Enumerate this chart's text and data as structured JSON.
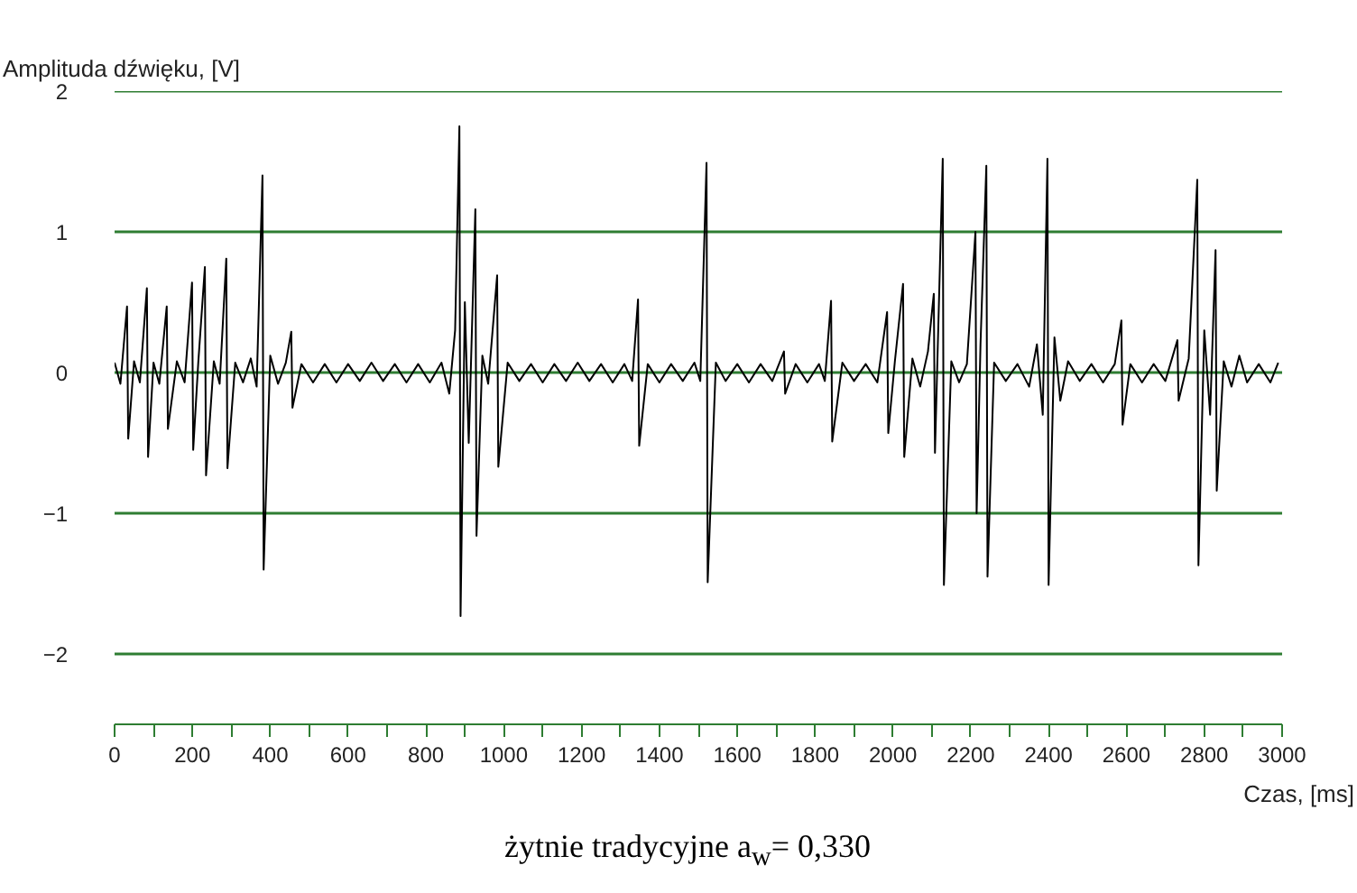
{
  "chart_data": {
    "type": "line",
    "ylabel": "Amplituda dźwięku, [V]",
    "xlabel": "Czas, [ms]",
    "annotations": [
      "żytnie tradycyjne a$_{w}$= 0,330"
    ],
    "xlim": [
      0,
      3000
    ],
    "ylim": [
      -2.5,
      2
    ],
    "xticks": [
      0,
      {
        "value": 100,
        "label": null
      },
      200,
      {
        "value": 300,
        "label": null
      },
      400,
      {
        "value": 500,
        "label": null
      },
      600,
      {
        "value": 700,
        "label": null
      },
      800,
      {
        "value": 900,
        "label": null
      },
      1000,
      {
        "value": 1100,
        "label": null
      },
      1200,
      {
        "value": 1300,
        "label": null
      },
      1400,
      {
        "value": 1500,
        "label": null
      },
      1600,
      {
        "value": 1700,
        "label": null
      },
      1800,
      {
        "value": 1900,
        "label": null
      },
      2000,
      {
        "value": 2100,
        "label": null
      },
      2200,
      {
        "value": 2300,
        "label": null
      },
      2400,
      {
        "value": 2500,
        "label": null
      },
      2600,
      {
        "value": 2700,
        "label": null
      },
      2800,
      {
        "value": 2900,
        "label": null
      },
      3000
    ],
    "yticks": [
      -2,
      -1,
      0,
      1,
      2
    ],
    "grid": "y",
    "marker": "none",
    "line_style": "solid",
    "series": [
      {
        "color": "#000000",
        "x": [
          0,
          15,
          32,
          35,
          50,
          65,
          83,
          86,
          100,
          115,
          134,
          137,
          160,
          180,
          199,
          202,
          215,
          232,
          235,
          255,
          270,
          287,
          290,
          310,
          330,
          350,
          365,
          380,
          383,
          400,
          420,
          440,
          454,
          457,
          480,
          510,
          540,
          570,
          600,
          630,
          660,
          690,
          720,
          750,
          780,
          810,
          840,
          860,
          875,
          886,
          889,
          900,
          910,
          927,
          930,
          945,
          960,
          983,
          986,
          1010,
          1040,
          1070,
          1100,
          1130,
          1160,
          1190,
          1220,
          1250,
          1280,
          1310,
          1330,
          1345,
          1348,
          1370,
          1400,
          1430,
          1460,
          1490,
          1505,
          1521,
          1524,
          1545,
          1570,
          1600,
          1630,
          1660,
          1690,
          1720,
          1723,
          1750,
          1780,
          1810,
          1825,
          1841,
          1844,
          1870,
          1900,
          1930,
          1960,
          1985,
          1988,
          2005,
          2026,
          2029,
          2050,
          2070,
          2090,
          2105,
          2108,
          2128,
          2131,
          2150,
          2170,
          2190,
          2212,
          2215,
          2225,
          2240,
          2243,
          2260,
          2290,
          2320,
          2350,
          2370,
          2385,
          2397,
          2400,
          2415,
          2430,
          2450,
          2480,
          2510,
          2540,
          2570,
          2587,
          2590,
          2610,
          2640,
          2670,
          2700,
          2731,
          2734,
          2760,
          2782,
          2785,
          2800,
          2815,
          2829,
          2832,
          2850,
          2870,
          2890,
          2910,
          2940,
          2970,
          2990
        ],
        "values": [
          0.07,
          -0.08,
          0.47,
          -0.47,
          0.08,
          -0.07,
          0.6,
          -0.6,
          0.07,
          -0.08,
          0.47,
          -0.4,
          0.08,
          -0.07,
          0.64,
          -0.55,
          0.07,
          0.75,
          -0.73,
          0.08,
          -0.08,
          0.81,
          -0.68,
          0.07,
          -0.07,
          0.1,
          -0.1,
          1.4,
          -1.4,
          0.12,
          -0.08,
          0.07,
          0.29,
          -0.25,
          0.06,
          -0.07,
          0.06,
          -0.07,
          0.06,
          -0.06,
          0.07,
          -0.06,
          0.06,
          -0.07,
          0.06,
          -0.07,
          0.07,
          -0.15,
          0.3,
          1.75,
          -1.73,
          0.5,
          -0.5,
          1.16,
          -1.16,
          0.12,
          -0.08,
          0.69,
          -0.67,
          0.07,
          -0.06,
          0.06,
          -0.07,
          0.06,
          -0.06,
          0.07,
          -0.06,
          0.06,
          -0.07,
          0.06,
          -0.06,
          0.52,
          -0.52,
          0.06,
          -0.07,
          0.06,
          -0.06,
          0.07,
          -0.06,
          1.49,
          -1.49,
          0.07,
          -0.06,
          0.06,
          -0.07,
          0.06,
          -0.06,
          0.15,
          -0.15,
          0.06,
          -0.07,
          0.06,
          -0.06,
          0.51,
          -0.49,
          0.07,
          -0.06,
          0.06,
          -0.07,
          0.43,
          -0.43,
          0.08,
          0.63,
          -0.6,
          0.1,
          -0.1,
          0.15,
          0.56,
          -0.57,
          1.52,
          -1.51,
          0.08,
          -0.07,
          0.06,
          1.0,
          -1.0,
          0.2,
          1.47,
          -1.45,
          0.07,
          -0.06,
          0.06,
          -0.1,
          0.2,
          -0.3,
          1.52,
          -1.51,
          0.25,
          -0.2,
          0.08,
          -0.06,
          0.06,
          -0.07,
          0.06,
          0.37,
          -0.37,
          0.06,
          -0.07,
          0.06,
          -0.06,
          0.23,
          -0.2,
          0.1,
          1.37,
          -1.37,
          0.3,
          -0.3,
          0.87,
          -0.84,
          0.08,
          -0.1,
          0.12,
          -0.07,
          0.06,
          -0.07,
          0.07
        ]
      }
    ]
  }
}
